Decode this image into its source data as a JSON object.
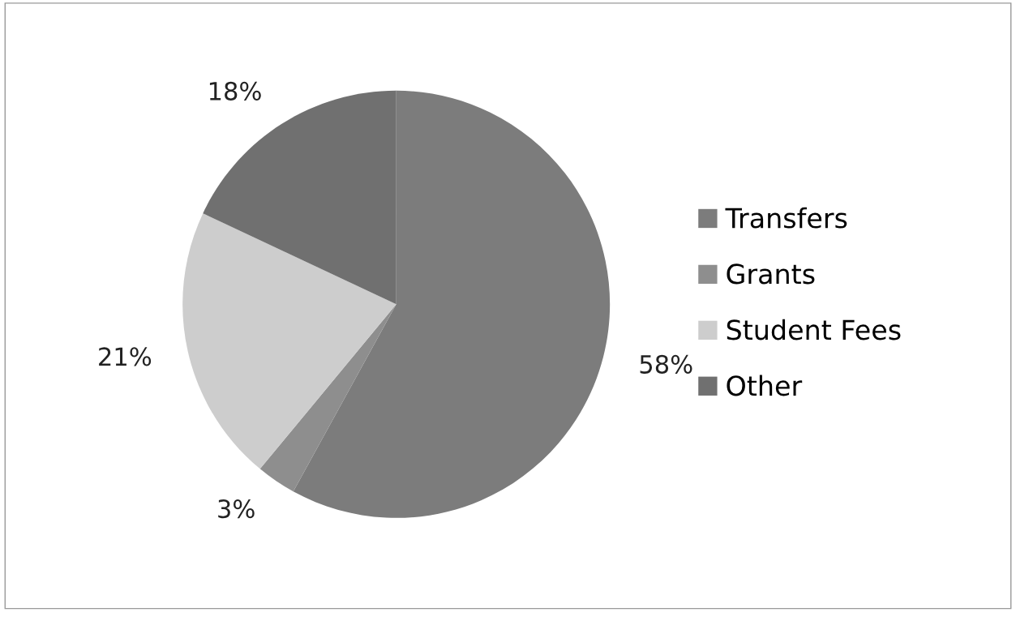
{
  "chart_data": {
    "type": "pie",
    "categories": [
      "Transfers",
      "Grants",
      "Student Fees",
      "Other"
    ],
    "values": [
      58,
      3,
      21,
      18
    ],
    "colors": [
      "#7c7c7c",
      "#8e8e8e",
      "#cdcdcd",
      "#707070"
    ],
    "value_labels": [
      "58%",
      "3%",
      "21%",
      "18%"
    ],
    "legend": "right"
  }
}
